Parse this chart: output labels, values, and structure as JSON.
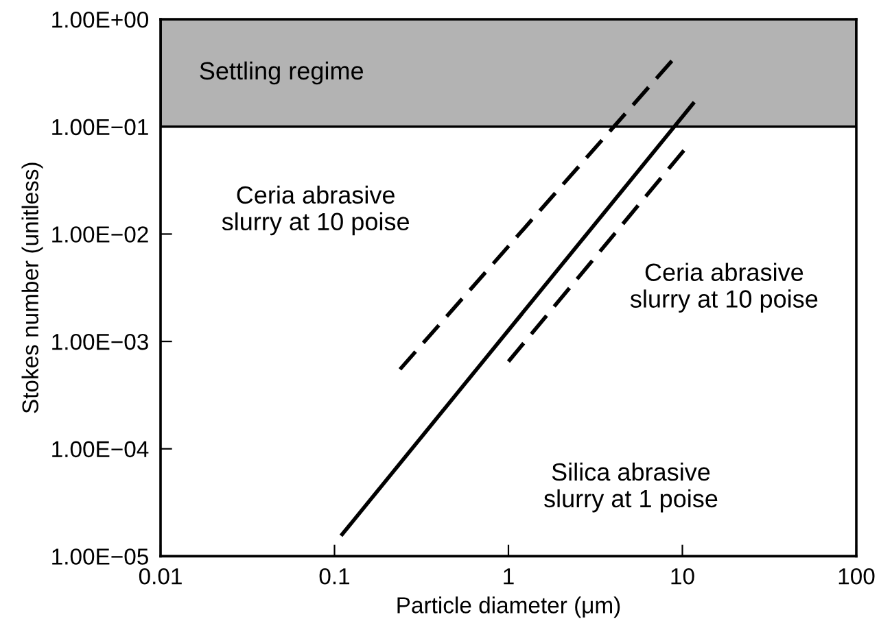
{
  "chart_data": {
    "type": "line",
    "xlabel": "Particle diameter (μm)",
    "ylabel": "Stokes number (unitless)",
    "log": "xy",
    "grid": false,
    "marker": "none",
    "xlim": [
      0.01,
      100
    ],
    "xticks": [
      0.01,
      0.1,
      1,
      10,
      100
    ],
    "ylim": [
      1e-05,
      1
    ],
    "yticks": [
      {
        "value": 1,
        "label": "1.00E+00"
      },
      {
        "value": 0.1,
        "label": "1.00E−01"
      },
      {
        "value": 0.01,
        "label": "1.00E−02"
      },
      {
        "value": 0.001,
        "label": "1.00E−03"
      },
      {
        "value": 0.0001,
        "label": "1.00E−04"
      },
      {
        "value": 1e-05,
        "label": "1.00E−05"
      }
    ],
    "series": [
      {
        "color": "#000000",
        "line_style": "dashed",
        "x": [
          0.238,
          8.7
        ],
        "values": [
          0.00055,
          0.41
        ]
      },
      {
        "color": "#000000",
        "line_style": "solid",
        "x": [
          0.109,
          11.7
        ],
        "values": [
          1.55e-05,
          0.169
        ]
      },
      {
        "color": "#000000",
        "line_style": "dashed",
        "x": [
          1,
          10.2
        ],
        "values": [
          0.00065,
          0.06
        ]
      }
    ],
    "bands": [
      {
        "axis": "y",
        "from": 0.1,
        "to": 1,
        "label": "Settling regime",
        "color": "#b3b3b3"
      }
    ],
    "annotations": [
      "Ceria abrasive\nslurry at 10 poise",
      "Ceria abrasive\nslurry at 10 poise",
      "Silica abrasive\nslurry at 1 poise"
    ]
  }
}
